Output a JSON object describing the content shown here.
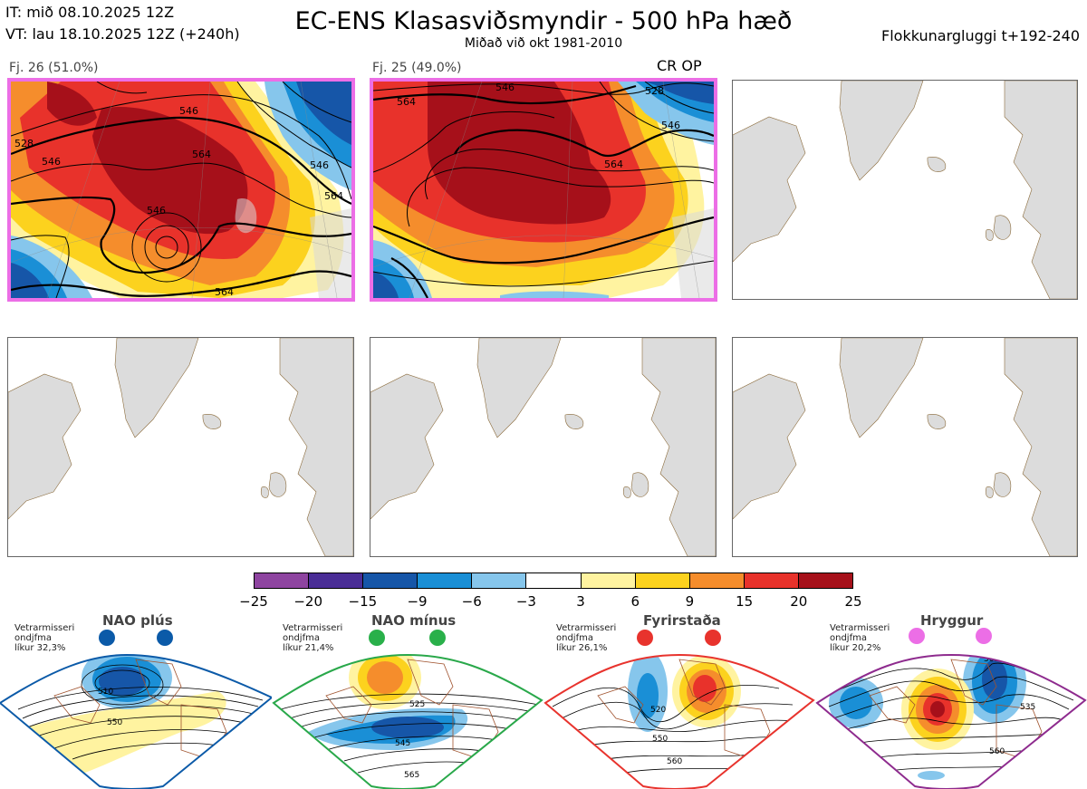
{
  "header": {
    "it": "IT: mið 08.10.2025 12Z",
    "vt": "VT: lau 18.10.2025 12Z  (+240h)",
    "title": "EC-ENS Klasasviðsmyndir - 500 hPa hæð",
    "subtitle": "Miðað við okt 1981-2010",
    "window": "Flokkunargluggi t+192-240"
  },
  "panels": [
    {
      "label": "Fj. 26 (51.0%)",
      "members": 26,
      "percent": 51.0,
      "highlighted": true,
      "contour_labels": [
        "528",
        "546",
        "546",
        "546",
        "564",
        "546",
        "564",
        "564"
      ]
    },
    {
      "label": "Fj. 25 (49.0%)",
      "members": 25,
      "percent": 49.0,
      "highlighted": true,
      "marker": "CR OP",
      "contour_labels": [
        "564",
        "546",
        "528",
        "546",
        "564"
      ]
    },
    {
      "label": "",
      "highlighted": false
    },
    {
      "label": "",
      "highlighted": false
    },
    {
      "label": "",
      "highlighted": false
    },
    {
      "label": "",
      "highlighted": false
    }
  ],
  "colorbar": {
    "ticks": [
      "−25",
      "−20",
      "−15",
      "−9",
      "−6",
      "−3",
      "3",
      "6",
      "9",
      "15",
      "20",
      "25"
    ],
    "colors": [
      "#8e44a0",
      "#4a2d96",
      "#1656a8",
      "#1a8fd6",
      "#86c6ec",
      "#ffffff",
      "#fff3a0",
      "#fcd21e",
      "#f58d2c",
      "#e8322b",
      "#a6101a"
    ]
  },
  "regimes": [
    {
      "name": "NAO plús",
      "note": [
        "Vetrarmisseri",
        "ondjfma",
        "líkur 32,3%"
      ],
      "probability": 32.3,
      "border_color": "#0b5aa8",
      "dot_color": "#0b5aa8",
      "contour_labels": [
        "510",
        "550"
      ]
    },
    {
      "name": "NAO mínus",
      "note": [
        "Vetrarmisseri",
        "ondjfma",
        "líkur 21,4%"
      ],
      "probability": 21.4,
      "border_color": "#29a84a",
      "dot_color": "#29b04a",
      "contour_labels": [
        "525",
        "545",
        "565"
      ]
    },
    {
      "name": "Fyrirstaða",
      "note": [
        "Vetrarmisseri",
        "ondjfma",
        "líkur 26,1%"
      ],
      "probability": 26.1,
      "border_color": "#e8332d",
      "dot_color": "#e8332d",
      "contour_labels": [
        "520",
        "550",
        "560"
      ]
    },
    {
      "name": "Hryggur",
      "note": [
        "Vetrarmisseri",
        "ondjfma",
        "líkur 20,2%"
      ],
      "probability": 20.2,
      "border_color": "#8e2b8e",
      "dot_color": "#ec6ee6",
      "contour_labels": [
        "505",
        "535",
        "560"
      ]
    }
  ]
}
